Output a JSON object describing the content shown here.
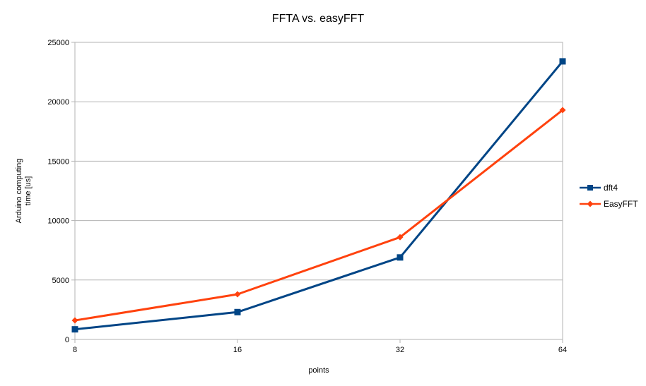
{
  "chart_data": {
    "type": "line",
    "title": "FFTA vs. easyFFT",
    "xlabel": "points",
    "ylabel": "Arduino computing time [us]",
    "ylabel_lines": [
      "Arduino computing",
      "time [us]"
    ],
    "categories": [
      "8",
      "16",
      "32",
      "64"
    ],
    "ylim": [
      0,
      25000
    ],
    "yticks": [
      0,
      5000,
      10000,
      15000,
      20000,
      25000
    ],
    "grid": true,
    "legend": "right",
    "series": [
      {
        "name": "dft4",
        "values": [
          850,
          2300,
          6900,
          23400
        ],
        "color": "#004586",
        "marker": "square"
      },
      {
        "name": "EasyFFT",
        "values": [
          1600,
          3800,
          8600,
          19300
        ],
        "color": "#ff420e",
        "marker": "diamond"
      }
    ]
  }
}
